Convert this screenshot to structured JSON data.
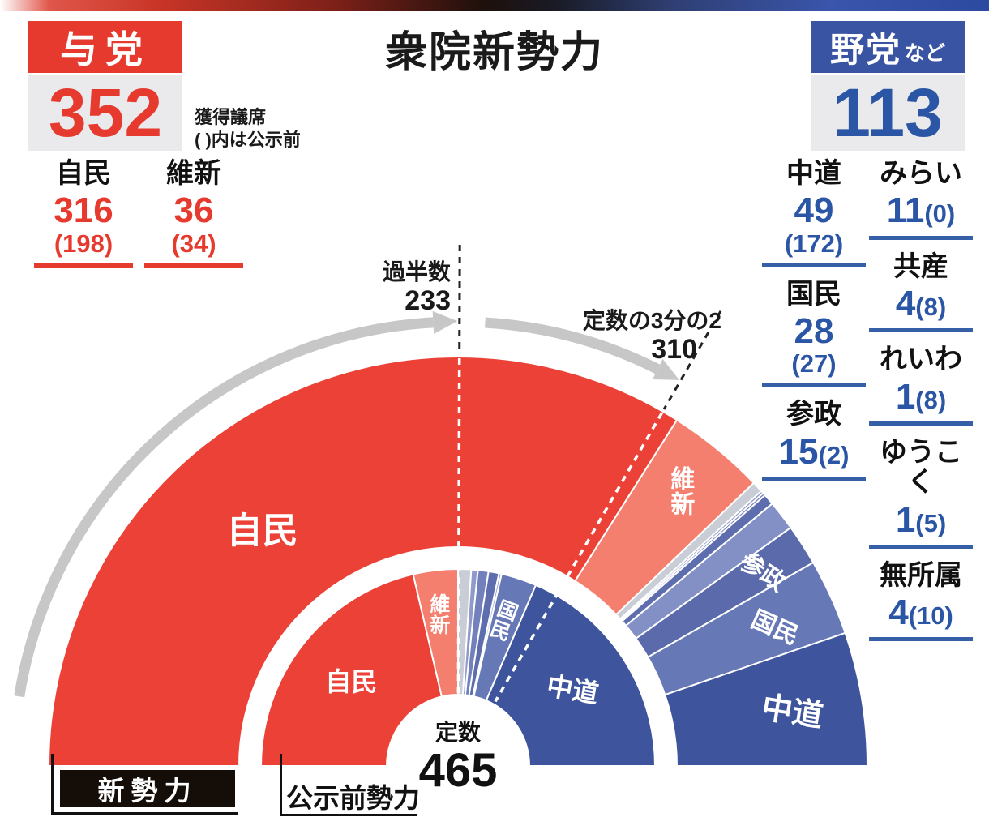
{
  "title": "衆院新勢力",
  "ruling_panel": {
    "tag": "与党",
    "total": "352",
    "note": [
      "獲得議席",
      "( )内は公示前"
    ],
    "parties": [
      {
        "name": "自民",
        "seats": "316",
        "prev": "(198)"
      },
      {
        "name": "維新",
        "seats": "36",
        "prev": "(34)"
      }
    ]
  },
  "opposition_panel": {
    "tag": "野党",
    "tag_suffix": "など",
    "total": "113",
    "columns": [
      [
        {
          "name": "中道",
          "seats": "49",
          "prev": "(172)",
          "two_line": true
        },
        {
          "name": "国民",
          "seats": "28",
          "prev": "(27)",
          "two_line": true
        },
        {
          "name": "参政",
          "seats": "15",
          "prev": "(2)",
          "two_line": false
        }
      ],
      [
        {
          "name": "みらい",
          "seats": "11",
          "prev": "(0)",
          "two_line": false
        },
        {
          "name": "共産",
          "seats": "4",
          "prev": "(8)",
          "two_line": false
        },
        {
          "name": "れいわ",
          "seats": "1",
          "prev": "(8)",
          "two_line": false
        },
        {
          "name": "ゆうこく",
          "seats": "1",
          "prev": "(5)",
          "two_line": false
        },
        {
          "name": "無所属",
          "seats": "4",
          "prev": "(10)",
          "two_line": false
        }
      ]
    ]
  },
  "guides": {
    "majority_label": "過半数",
    "majority_value": "233",
    "two_thirds_label": "定数の3分の2",
    "two_thirds_value": "310"
  },
  "footer": {
    "new_ring_label": "新勢力",
    "prev_ring_label": "公示前勢力",
    "capacity_label": "定数",
    "capacity_value": "465"
  },
  "colors": {
    "ruling_red": "#e73a2e",
    "opposition_blue": "#3a54a4",
    "number_blue": "#2b55a5",
    "underline_blue": "#3560a8",
    "arrow_gray": "#c7c7c7",
    "panel_gray": "#eaeaec"
  },
  "chart_data": {
    "type": "parliament-halfdonut",
    "title": "衆院新勢力",
    "total_seats": 465,
    "majority": 233,
    "two_thirds": 310,
    "rings": [
      {
        "name": "新勢力",
        "position": "outer",
        "segments": [
          {
            "party": "自民",
            "seats": 316,
            "color": "#ec4136"
          },
          {
            "party": "維新",
            "seats": 36,
            "color": "#f47f6e"
          },
          {
            "party": "無所属",
            "seats": 4,
            "color": "#c9cdd5"
          },
          {
            "party": "ゆうこく",
            "seats": 1,
            "color": "#8f9aca"
          },
          {
            "party": "れいわ",
            "seats": 1,
            "color": "#7281bb"
          },
          {
            "party": "共産",
            "seats": 4,
            "color": "#5e6dae"
          },
          {
            "party": "みらい",
            "seats": 11,
            "color": "#8290c5"
          },
          {
            "party": "参政",
            "seats": 15,
            "color": "#5a6aaa"
          },
          {
            "party": "国民",
            "seats": 28,
            "color": "#6678b6"
          },
          {
            "party": "中道",
            "seats": 49,
            "color": "#3e549d"
          }
        ]
      },
      {
        "name": "公示前勢力",
        "position": "inner",
        "segments": [
          {
            "party": "自民",
            "seats": 198,
            "color": "#ec4136"
          },
          {
            "party": "維新",
            "seats": 34,
            "color": "#f47f6e"
          },
          {
            "party": "無所属",
            "seats": 10,
            "color": "#c9cdd5"
          },
          {
            "party": "ゆうこく",
            "seats": 5,
            "color": "#8f9aca"
          },
          {
            "party": "れいわ",
            "seats": 8,
            "color": "#7281bb"
          },
          {
            "party": "共産",
            "seats": 8,
            "color": "#5e6dae"
          },
          {
            "party": "参政",
            "seats": 2,
            "color": "#98a3cf"
          },
          {
            "party": "みらい",
            "seats": 0,
            "color": "#8290c5"
          },
          {
            "party": "国民",
            "seats": 27,
            "color": "#6678b6"
          },
          {
            "party": "中道",
            "seats": 172,
            "color": "#3e549d"
          }
        ]
      }
    ]
  }
}
